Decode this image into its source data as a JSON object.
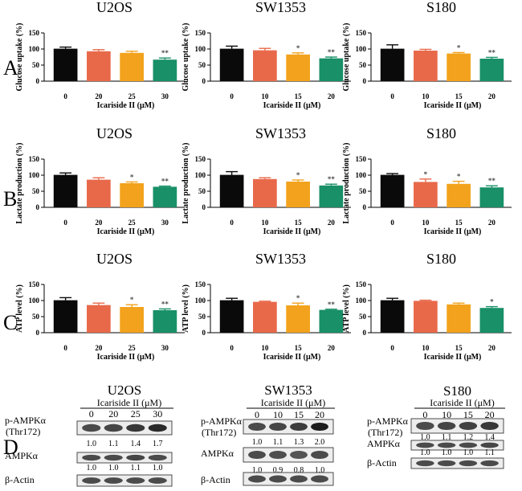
{
  "figure": {
    "row_labels": [
      "A",
      "B",
      "C",
      "D"
    ],
    "colors": {
      "black": "#0a0a0a",
      "coral": "#e8694a",
      "orange": "#f2a21c",
      "green": "#199067",
      "star_grey": "#4a4a4a"
    }
  },
  "chart_data": [
    {
      "type": "bar",
      "row": "A",
      "title": "U2OS",
      "xlabel": "Icariside II (μM)",
      "ylabel": "Glucose uptake (%)",
      "categories": [
        "0",
        "20",
        "25",
        "30"
      ],
      "values": [
        101,
        93,
        88,
        67
      ],
      "errors": [
        5,
        5,
        5,
        5
      ],
      "annotations": [
        "",
        "",
        "",
        "**"
      ],
      "ylim": [
        0,
        150
      ],
      "yticks": [
        "0",
        "50",
        "100",
        "150"
      ]
    },
    {
      "type": "bar",
      "row": "A",
      "title": "SW1353",
      "xlabel": "Icariside II (μM)",
      "ylabel": "Glucose uptake (%)",
      "categories": [
        "0",
        "10",
        "15",
        "20"
      ],
      "values": [
        101,
        96,
        83,
        71
      ],
      "errors": [
        8,
        6,
        5,
        4
      ],
      "annotations": [
        "",
        "",
        "*",
        "**"
      ],
      "ylim": [
        0,
        150
      ],
      "yticks": [
        "0",
        "50",
        "100",
        "150"
      ]
    },
    {
      "type": "bar",
      "row": "A",
      "title": "S180",
      "xlabel": "Icariside II (μM)",
      "ylabel": "Glucose uptake (%)",
      "categories": [
        "0",
        "10",
        "15",
        "20"
      ],
      "values": [
        101,
        95,
        86,
        70
      ],
      "errors": [
        12,
        4,
        3,
        4
      ],
      "annotations": [
        "",
        "",
        "*",
        "**"
      ],
      "ylim": [
        0,
        150
      ],
      "yticks": [
        "0",
        "50",
        "100",
        "150"
      ]
    },
    {
      "type": "bar",
      "row": "B",
      "title": "U2OS",
      "xlabel": "Icariside II (μM)",
      "ylabel": "Lactate production (%)",
      "categories": [
        "0",
        "20",
        "25",
        "30"
      ],
      "values": [
        101,
        86,
        75,
        64
      ],
      "errors": [
        6,
        6,
        4,
        2
      ],
      "annotations": [
        "",
        "",
        "*",
        "**"
      ],
      "ylim": [
        0,
        150
      ],
      "yticks": [
        "0",
        "50",
        "100",
        "150"
      ]
    },
    {
      "type": "bar",
      "row": "B",
      "title": "SW1353",
      "xlabel": "Icariside II (μM)",
      "ylabel": "Lactate production (%)",
      "categories": [
        "0",
        "10",
        "15",
        "20"
      ],
      "values": [
        101,
        88,
        80,
        68
      ],
      "errors": [
        10,
        4,
        5,
        4
      ],
      "annotations": [
        "",
        "",
        "*",
        "**"
      ],
      "ylim": [
        0,
        150
      ],
      "yticks": [
        "0",
        "50",
        "100",
        "150"
      ]
    },
    {
      "type": "bar",
      "row": "B",
      "title": "S180",
      "xlabel": "Icariside II (μM)",
      "ylabel": "Lactate production (%)",
      "categories": [
        "0",
        "10",
        "15",
        "20"
      ],
      "values": [
        101,
        79,
        73,
        62
      ],
      "errors": [
        4,
        9,
        8,
        5
      ],
      "annotations": [
        "",
        "*",
        "*",
        "**"
      ],
      "ylim": [
        0,
        150
      ],
      "yticks": [
        "0",
        "50",
        "100",
        "150"
      ]
    },
    {
      "type": "bar",
      "row": "C",
      "title": "U2OS",
      "xlabel": "Icariside II (μM)",
      "ylabel": "ATP level (%)",
      "categories": [
        "0",
        "20",
        "25",
        "30"
      ],
      "values": [
        101,
        86,
        80,
        70
      ],
      "errors": [
        8,
        6,
        7,
        4
      ],
      "annotations": [
        "",
        "",
        "*",
        "**"
      ],
      "ylim": [
        0,
        150
      ],
      "yticks": [
        "0",
        "50",
        "100",
        "150"
      ]
    },
    {
      "type": "bar",
      "row": "C",
      "title": "SW1353",
      "xlabel": "Icariside II (μM)",
      "ylabel": "ATP level (%)",
      "categories": [
        "0",
        "10",
        "15",
        "20"
      ],
      "values": [
        101,
        96,
        85,
        71
      ],
      "errors": [
        6,
        2,
        7,
        2
      ],
      "annotations": [
        "",
        "",
        "*",
        "**"
      ],
      "ylim": [
        0,
        150
      ],
      "yticks": [
        "0",
        "50",
        "100",
        "150"
      ]
    },
    {
      "type": "bar",
      "row": "C",
      "title": "S180",
      "xlabel": "Icariside II (μM)",
      "ylabel": "ATP level (%)",
      "categories": [
        "0",
        "10",
        "15",
        "20"
      ],
      "values": [
        101,
        99,
        88,
        77
      ],
      "errors": [
        6,
        2,
        4,
        4
      ],
      "annotations": [
        "",
        "",
        "",
        "*"
      ],
      "ylim": [
        0,
        150
      ],
      "yticks": [
        "0",
        "50",
        "100",
        "150"
      ]
    }
  ],
  "western_blots": [
    {
      "title": "U2OS",
      "treatment_label": "Icariside II  (μM)",
      "lanes": [
        "0",
        "20",
        "25",
        "30"
      ],
      "rows": [
        {
          "label": "p-AMPKα",
          "sublabel": "(Thr172)",
          "values": [
            "1.0",
            "1.1",
            "1.4",
            "1.7"
          ]
        },
        {
          "label": "AMPKα",
          "sublabel": "",
          "values": [
            "1.0",
            "1.0",
            "1.1",
            "1.0"
          ]
        },
        {
          "label": "β-Actin",
          "sublabel": "",
          "values": []
        }
      ]
    },
    {
      "title": "SW1353",
      "treatment_label": "Icariside II  (μM)",
      "lanes": [
        "0",
        "10",
        "15",
        "20"
      ],
      "rows": [
        {
          "label": "p-AMPKα",
          "sublabel": "(Thr172)",
          "values": [
            "1.0",
            "1.1",
            "1.3",
            "2.0"
          ]
        },
        {
          "label": "AMPKα",
          "sublabel": "",
          "values": [
            "1.0",
            "0.9",
            "0.8",
            "1.0"
          ]
        },
        {
          "label": "β-Actin",
          "sublabel": "",
          "values": []
        }
      ]
    },
    {
      "title": "S180",
      "treatment_label": "Icariside II  (μM)",
      "lanes": [
        "0",
        "10",
        "15",
        "20"
      ],
      "rows": [
        {
          "label": "p-AMPKα",
          "sublabel": "(Thr172)",
          "values": [
            "1.0",
            "1.1",
            "1.2",
            "1.4"
          ]
        },
        {
          "label": "AMPKα",
          "sublabel": "",
          "values": [
            "1.0",
            "1.0",
            "1.0",
            "1.1"
          ]
        },
        {
          "label": "β-Actin",
          "sublabel": "",
          "values": []
        }
      ]
    }
  ]
}
